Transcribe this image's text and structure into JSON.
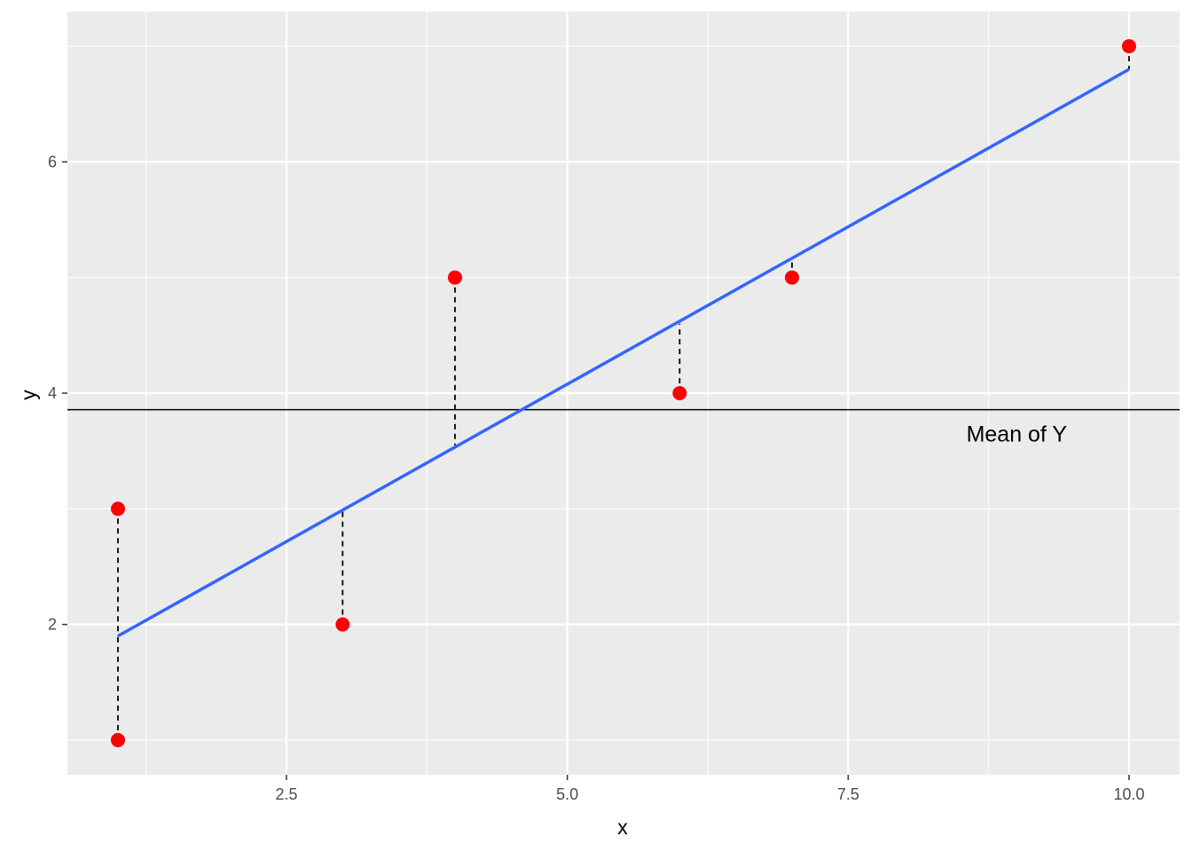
{
  "chart_data": {
    "type": "scatter",
    "title": "",
    "xlabel": "x",
    "ylabel": "y",
    "xlim": [
      0.55,
      10.45
    ],
    "ylim": [
      0.7,
      7.3
    ],
    "x_ticks": [
      2.5,
      5.0,
      7.5,
      10.0
    ],
    "x_tick_labels": [
      "2.5",
      "5.0",
      "7.5",
      "10.0"
    ],
    "y_ticks": [
      2,
      4,
      6
    ],
    "y_tick_labels": [
      "2",
      "4",
      "6"
    ],
    "grid": true,
    "points": {
      "x": [
        1,
        1,
        3,
        4,
        6,
        7,
        10
      ],
      "y": [
        1,
        3,
        2,
        5,
        4,
        5,
        7
      ],
      "color": "#ff0000"
    },
    "fit_line": {
      "x": [
        1,
        10
      ],
      "y": [
        1.9,
        6.8
      ],
      "color": "#3366ff"
    },
    "residuals": [
      {
        "x": 1,
        "y_point": 1,
        "y_fit": 1.9
      },
      {
        "x": 1,
        "y_point": 3,
        "y_fit": 1.9
      },
      {
        "x": 3,
        "y_point": 2,
        "y_fit": 3.0
      },
      {
        "x": 4,
        "y_point": 5,
        "y_fit": 3.55
      },
      {
        "x": 6,
        "y_point": 4,
        "y_fit": 4.6
      },
      {
        "x": 7,
        "y_point": 5,
        "y_fit": 5.15
      },
      {
        "x": 10,
        "y_point": 7,
        "y_fit": 6.8
      }
    ],
    "hline": {
      "y": 3.857,
      "color": "#000000"
    },
    "annotation": {
      "text": "Mean of Y",
      "x": 9.0,
      "y": 3.65
    }
  }
}
